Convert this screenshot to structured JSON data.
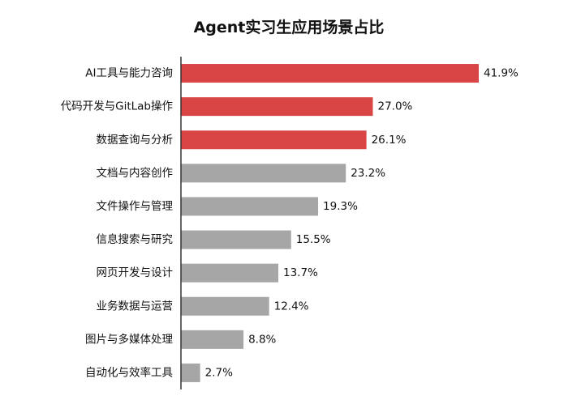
{
  "chart_data": {
    "type": "bar",
    "orientation": "horizontal",
    "title": "Agent实习生应用场景占比",
    "xlabel": "",
    "ylabel": "",
    "xlim": [
      0,
      45
    ],
    "grid": false,
    "legend": "none",
    "categories": [
      "AI工具与能力咨询",
      "代码开发与GitLab操作",
      "数据查询与分析",
      "文档与内容创作",
      "文件操作与管理",
      "信息搜索与研究",
      "网页开发与设计",
      "业务数据与运营",
      "图片与多媒体处理",
      "自动化与效率工具"
    ],
    "values": [
      41.9,
      27.0,
      26.1,
      23.2,
      19.3,
      15.5,
      13.7,
      12.4,
      8.8,
      2.7
    ],
    "value_labels": [
      "41.9%",
      "27.0%",
      "26.1%",
      "23.2%",
      "19.3%",
      "15.5%",
      "13.7%",
      "12.4%",
      "8.8%",
      "2.7%"
    ],
    "highlight_count": 3,
    "colors": {
      "highlight": "#d94545",
      "default": "#a6a6a6",
      "axis": "#333333",
      "text": "#111111"
    }
  }
}
